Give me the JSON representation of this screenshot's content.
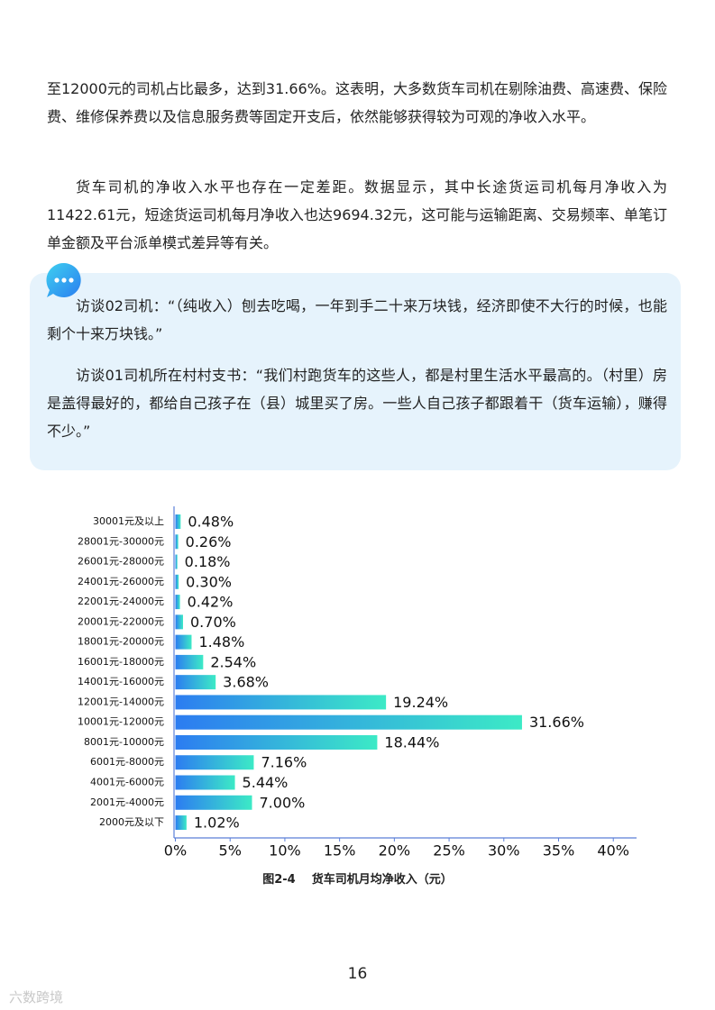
{
  "paragraphs": [
    "至12000元的司机占比最多，达到31.66%。这表明，大多数货车司机在剔除油费、高速费、保险费、维修保养费以及信息服务费等固定开支后，依然能够获得较为可观的净收入水平。",
    "货车司机的净收入水平也存在一定差距。数据显示，其中长途货运司机每月净收入为11422.61元，短途货运司机每月净收入也达9694.32元，这可能与运输距离、交易频率、单笔订单金额及平台派单模式差异等有关。"
  ],
  "quote": {
    "items": [
      "访谈02司机：“（纯收入）刨去吃喝，一年到手二十来万块钱，经济即使不大行的时候，也能剩个十来万块钱。”",
      "访谈01司机所在村村支书：“我们村跑货车的这些人，都是村里生活水平最高的。（村里）房是盖得最好的，都给自己孩子在（县）城里买了房。一些人自己孩子都跟着干（货车运输），赚得不少。”"
    ]
  },
  "chart_data": {
    "type": "bar",
    "orientation": "horizontal",
    "title": "图2-4    货车司机月均净收入（元）",
    "categories": [
      "30001元及以上",
      "28001元-30000元",
      "26001元-28000元",
      "24001元-26000元",
      "22001元-24000元",
      "20001元-22000元",
      "18001元-20000元",
      "16001元-18000元",
      "14001元-16000元",
      "12001元-14000元",
      "10001元-12000元",
      "8001元-10000元",
      "6001元-8000元",
      "4001元-6000元",
      "2001元-4000元",
      "2000元及以下"
    ],
    "values": [
      0.48,
      0.26,
      0.18,
      0.3,
      0.42,
      0.7,
      1.48,
      2.54,
      3.68,
      19.24,
      31.66,
      18.44,
      7.16,
      5.44,
      7.0,
      1.02
    ],
    "value_labels": [
      "0.48%",
      "0.26%",
      "0.18%",
      "0.30%",
      "0.42%",
      "0.70%",
      "1.48%",
      "2.54%",
      "3.68%",
      "19.24%",
      "31.66%",
      "18.44%",
      "7.16%",
      "5.44%",
      "7.00%",
      "1.02%"
    ],
    "gradient": [
      "#2c7cf1",
      "#3ceac6"
    ],
    "xlim": [
      0,
      42
    ],
    "xticks": [
      {
        "value": 0,
        "label": "0%"
      },
      {
        "value": 5,
        "label": "5%"
      },
      {
        "value": 10,
        "label": "10%"
      },
      {
        "value": 15,
        "label": "15%"
      },
      {
        "value": 20,
        "label": "20%"
      },
      {
        "value": 25,
        "label": "25%"
      },
      {
        "value": 30,
        "label": "30%"
      },
      {
        "value": 35,
        "label": "35%"
      },
      {
        "value": 40,
        "label": "40%"
      }
    ],
    "grid": false
  },
  "page_number": "16",
  "watermark": "六数跨境"
}
